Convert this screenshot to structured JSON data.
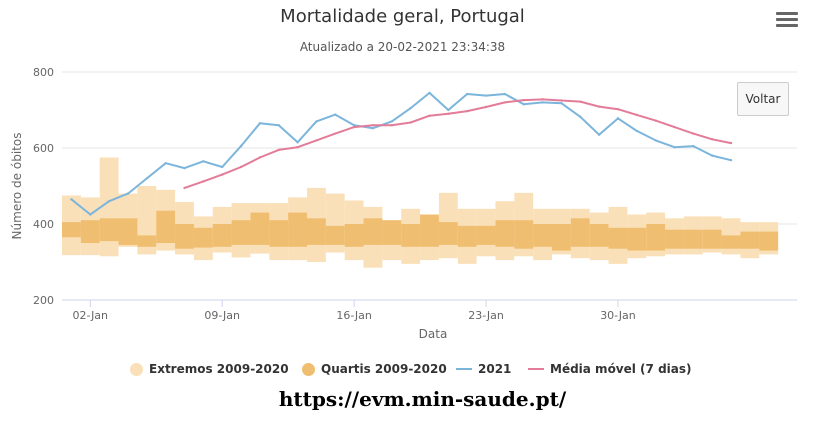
{
  "header": {
    "title": "Mortalidade geral, Portugal",
    "subtitle": "Atualizado a 20-02-2021 23:34:38"
  },
  "toolbar": {
    "menu_icon": "hamburger-menu-icon",
    "back_label": "Voltar"
  },
  "footer": {
    "source_url": "https://evm.min-saude.pt/"
  },
  "colors": {
    "extremes": "#f9e0b8",
    "quartiles": "#f0be70",
    "series_2021": "#7cb5dc",
    "moving_avg": "#e37c98",
    "grid": "#e6e6e6",
    "axis": "#ccd6eb"
  },
  "chart_data": {
    "type": "line",
    "xlabel": "Data",
    "ylabel": "Número de óbitos",
    "ylim": [
      200,
      800
    ],
    "yticks": [
      "200",
      "400",
      "600",
      "800"
    ],
    "xlim": [
      0.5,
      39.5
    ],
    "xticks": [
      {
        "day": 2,
        "label": "02-Jan"
      },
      {
        "day": 9,
        "label": "09-Jan"
      },
      {
        "day": 16,
        "label": "16-Jan"
      },
      {
        "day": 23,
        "label": "23-Jan"
      },
      {
        "day": 30,
        "label": "30-Jan"
      }
    ],
    "legend": [
      {
        "name": "Extremos 2009-2020",
        "kind": "band-extremes"
      },
      {
        "name": "Quartis 2009-2020",
        "kind": "band-quartiles"
      },
      {
        "name": "2021",
        "kind": "line-2021"
      },
      {
        "name": "Média móvel (7 dias)",
        "kind": "line-avg"
      }
    ],
    "series": [
      {
        "name": "Extremos 2009-2020",
        "kind": "band",
        "low": [
          318,
          318,
          315,
          340,
          320,
          330,
          320,
          305,
          325,
          312,
          322,
          305,
          305,
          300,
          325,
          305,
          285,
          305,
          295,
          305,
          310,
          295,
          315,
          305,
          315,
          305,
          320,
          310,
          305,
          295,
          310,
          315,
          320,
          320,
          325,
          320,
          310,
          320
        ],
        "high": [
          475,
          470,
          575,
          480,
          500,
          490,
          458,
          420,
          445,
          455,
          455,
          455,
          470,
          495,
          480,
          462,
          445,
          410,
          440,
          410,
          482,
          440,
          440,
          460,
          482,
          440,
          440,
          440,
          430,
          445,
          425,
          430,
          415,
          420,
          420,
          415,
          405,
          405
        ]
      },
      {
        "name": "Quartis 2009-2020",
        "kind": "band",
        "low": [
          365,
          350,
          355,
          345,
          340,
          350,
          335,
          338,
          340,
          345,
          345,
          340,
          340,
          345,
          345,
          340,
          345,
          345,
          340,
          340,
          345,
          340,
          345,
          340,
          335,
          340,
          330,
          340,
          340,
          335,
          330,
          330,
          335,
          335,
          335,
          335,
          335,
          330
        ],
        "high": [
          405,
          410,
          415,
          415,
          370,
          435,
          400,
          390,
          400,
          410,
          430,
          410,
          430,
          415,
          395,
          400,
          415,
          410,
          400,
          425,
          405,
          395,
          395,
          410,
          410,
          400,
          400,
          415,
          400,
          390,
          390,
          400,
          385,
          385,
          385,
          370,
          380,
          380
        ]
      },
      {
        "name": "2021",
        "kind": "line",
        "x": [
          1,
          2,
          3,
          4,
          5,
          6,
          7,
          8,
          9,
          10,
          11,
          12,
          13,
          14,
          15,
          16,
          17,
          18,
          19,
          20,
          21,
          22,
          23,
          24,
          25,
          26,
          27,
          28,
          29,
          30,
          31,
          32,
          33,
          34,
          35,
          36
        ],
        "values": [
          465,
          425,
          460,
          480,
          520,
          560,
          547,
          565,
          550,
          605,
          665,
          660,
          615,
          670,
          688,
          660,
          652,
          670,
          705,
          745,
          700,
          742,
          738,
          742,
          715,
          720,
          718,
          682,
          635,
          678,
          645,
          620,
          602,
          605,
          580,
          568
        ]
      },
      {
        "name": "Média móvel (7 dias)",
        "kind": "line",
        "x": [
          7,
          8,
          9,
          10,
          11,
          12,
          13,
          14,
          15,
          16,
          17,
          18,
          19,
          20,
          21,
          22,
          23,
          24,
          25,
          26,
          27,
          28,
          29,
          30,
          31,
          32,
          33,
          34,
          35,
          36
        ],
        "values": [
          495,
          512,
          530,
          550,
          575,
          595,
          602,
          620,
          638,
          655,
          660,
          660,
          667,
          685,
          690,
          697,
          708,
          720,
          726,
          728,
          725,
          722,
          709,
          702,
          687,
          672,
          655,
          638,
          623,
          613
        ]
      }
    ]
  }
}
